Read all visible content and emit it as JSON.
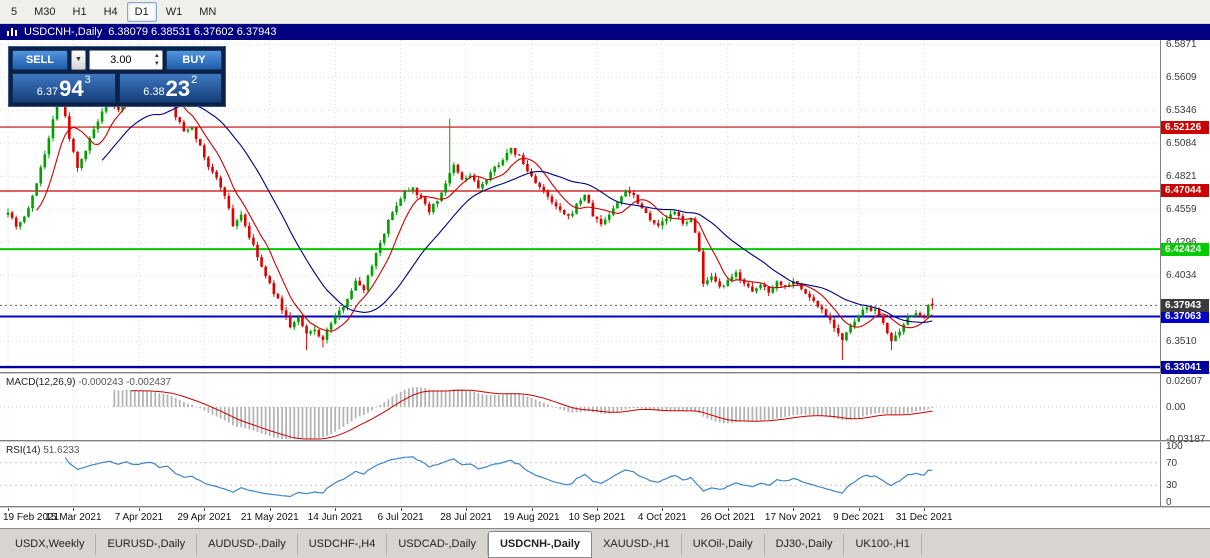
{
  "toolbar": {
    "timeframes": [
      {
        "label": "5",
        "active": false
      },
      {
        "label": "M30",
        "active": false
      },
      {
        "label": "H1",
        "active": false
      },
      {
        "label": "H4",
        "active": false
      },
      {
        "label": "D1",
        "active": true
      },
      {
        "label": "W1",
        "active": false
      },
      {
        "label": "MN",
        "active": false
      }
    ]
  },
  "chart_header": {
    "title": "USDCNH-,Daily",
    "ohlc": "6.38079 6.38531 6.37602 6.37943"
  },
  "trade_panel": {
    "sell_label": "SELL",
    "buy_label": "BUY",
    "volume": "3.00",
    "bid": {
      "prefix": "6.37",
      "big": "94",
      "sup": "3"
    },
    "ask": {
      "prefix": "6.38",
      "big": "23",
      "sup": "2"
    }
  },
  "price_axis": {
    "ticks": [
      "6.5871",
      "6.5609",
      "6.5346",
      "6.5084",
      "6.4821",
      "6.4559",
      "6.4296",
      "6.4034",
      "6.3771",
      "6.3510"
    ]
  },
  "levels": [
    {
      "value": "6.52126",
      "color": "#cc0000",
      "width": 1.2
    },
    {
      "value": "6.47044",
      "color": "#cc0000",
      "width": 1.2
    },
    {
      "value": "6.42424",
      "color": "#00cc00",
      "width": 2
    },
    {
      "value": "6.37063",
      "color": "#0000cc",
      "width": 2
    },
    {
      "value": "6.33041",
      "color": "#0000a0",
      "width": 2.4
    }
  ],
  "current_price": {
    "value": "6.37943",
    "badge_color": "#3a3a3a"
  },
  "chart_data": {
    "type": "candlestick",
    "title": "USDCNH-,Daily",
    "bars": 227,
    "ylim": [
      6.3265,
      6.5905
    ],
    "up_color": "#00a000",
    "down_color": "#e00000",
    "ma_fast": {
      "period": 8,
      "color": "#cc0000"
    },
    "ma_slow": {
      "period": 24,
      "color": "#000080"
    },
    "close_anchors": [
      [
        0,
        6.455
      ],
      [
        2,
        6.443
      ],
      [
        4,
        6.45
      ],
      [
        6,
        6.465
      ],
      [
        8,
        6.49
      ],
      [
        10,
        6.512
      ],
      [
        12,
        6.542
      ],
      [
        13,
        6.546
      ],
      [
        15,
        6.512
      ],
      [
        17,
        6.49
      ],
      [
        19,
        6.503
      ],
      [
        21,
        6.519
      ],
      [
        23,
        6.532
      ],
      [
        25,
        6.542
      ],
      [
        27,
        6.534
      ],
      [
        29,
        6.549
      ],
      [
        31,
        6.541
      ],
      [
        33,
        6.549
      ],
      [
        35,
        6.553
      ],
      [
        37,
        6.543
      ],
      [
        39,
        6.547
      ],
      [
        41,
        6.53
      ],
      [
        43,
        6.518
      ],
      [
        45,
        6.522
      ],
      [
        47,
        6.505
      ],
      [
        49,
        6.49
      ],
      [
        51,
        6.48
      ],
      [
        53,
        6.468
      ],
      [
        55,
        6.443
      ],
      [
        57,
        6.452
      ],
      [
        59,
        6.434
      ],
      [
        61,
        6.418
      ],
      [
        63,
        6.402
      ],
      [
        65,
        6.39
      ],
      [
        67,
        6.377
      ],
      [
        69,
        6.363
      ],
      [
        71,
        6.369
      ],
      [
        73,
        6.356
      ],
      [
        75,
        6.36
      ],
      [
        77,
        6.352
      ],
      [
        79,
        6.366
      ],
      [
        81,
        6.374
      ],
      [
        83,
        6.386
      ],
      [
        85,
        6.398
      ],
      [
        87,
        6.393
      ],
      [
        89,
        6.412
      ],
      [
        91,
        6.43
      ],
      [
        93,
        6.446
      ],
      [
        95,
        6.46
      ],
      [
        97,
        6.47
      ],
      [
        99,
        6.474
      ],
      [
        101,
        6.464
      ],
      [
        103,
        6.455
      ],
      [
        105,
        6.463
      ],
      [
        107,
        6.477
      ],
      [
        109,
        6.49
      ],
      [
        111,
        6.479
      ],
      [
        113,
        6.483
      ],
      [
        115,
        6.473
      ],
      [
        117,
        6.479
      ],
      [
        119,
        6.489
      ],
      [
        121,
        6.496
      ],
      [
        123,
        6.503
      ],
      [
        125,
        6.498
      ],
      [
        127,
        6.486
      ],
      [
        129,
        6.478
      ],
      [
        131,
        6.469
      ],
      [
        133,
        6.461
      ],
      [
        135,
        6.454
      ],
      [
        137,
        6.449
      ],
      [
        139,
        6.459
      ],
      [
        141,
        6.468
      ],
      [
        143,
        6.451
      ],
      [
        145,
        6.444
      ],
      [
        147,
        6.452
      ],
      [
        149,
        6.461
      ],
      [
        151,
        6.472
      ],
      [
        153,
        6.467
      ],
      [
        155,
        6.457
      ],
      [
        157,
        6.449
      ],
      [
        159,
        6.442
      ],
      [
        161,
        6.449
      ],
      [
        163,
        6.453
      ],
      [
        165,
        6.446
      ],
      [
        167,
        6.447
      ],
      [
        168,
        6.437
      ],
      [
        169,
        6.424
      ],
      [
        170,
        6.396
      ],
      [
        172,
        6.401
      ],
      [
        174,
        6.393
      ],
      [
        176,
        6.398
      ],
      [
        178,
        6.405
      ],
      [
        180,
        6.398
      ],
      [
        182,
        6.389
      ],
      [
        184,
        6.396
      ],
      [
        186,
        6.391
      ],
      [
        188,
        6.398
      ],
      [
        190,
        6.395
      ],
      [
        192,
        6.4
      ],
      [
        194,
        6.392
      ],
      [
        196,
        6.386
      ],
      [
        198,
        6.379
      ],
      [
        200,
        6.373
      ],
      [
        202,
        6.363
      ],
      [
        204,
        6.352
      ],
      [
        206,
        6.362
      ],
      [
        208,
        6.371
      ],
      [
        210,
        6.378
      ],
      [
        212,
        6.375
      ],
      [
        214,
        6.366
      ],
      [
        216,
        6.351
      ],
      [
        218,
        6.357
      ],
      [
        220,
        6.369
      ],
      [
        222,
        6.375
      ],
      [
        224,
        6.368
      ],
      [
        225,
        6.378
      ],
      [
        226,
        6.3794
      ]
    ],
    "wick_events": [
      {
        "i": 13,
        "high": 6.551
      },
      {
        "i": 34,
        "high": 6.557
      },
      {
        "i": 73,
        "low": 6.344
      },
      {
        "i": 77,
        "low": 6.346
      },
      {
        "i": 108,
        "high": 6.528
      },
      {
        "i": 204,
        "low": 6.336
      },
      {
        "i": 216,
        "low": 6.344
      }
    ],
    "last_candle": {
      "o": 6.38079,
      "h": 6.38531,
      "l": 6.37602,
      "c": 6.37943
    },
    "x_labels": [
      {
        "i": 0,
        "label": "19 Feb 2021"
      },
      {
        "i": 16,
        "label": "15 Mar 2021"
      },
      {
        "i": 32,
        "label": "7 Apr 2021"
      },
      {
        "i": 48,
        "label": "29 Apr 2021"
      },
      {
        "i": 64,
        "label": "21 May 2021"
      },
      {
        "i": 80,
        "label": "14 Jun 2021"
      },
      {
        "i": 96,
        "label": "6 Jul 2021"
      },
      {
        "i": 112,
        "label": "28 Jul 2021"
      },
      {
        "i": 128,
        "label": "19 Aug 2021"
      },
      {
        "i": 144,
        "label": "10 Sep 2021"
      },
      {
        "i": 160,
        "label": "4 Oct 2021"
      },
      {
        "i": 176,
        "label": "26 Oct 2021"
      },
      {
        "i": 192,
        "label": "17 Nov 2021"
      },
      {
        "i": 208,
        "label": "9 Dec 2021"
      },
      {
        "i": 224,
        "label": "31 Dec 2021"
      }
    ]
  },
  "macd_panel": {
    "label": "MACD(12,26,9)",
    "values": "-0.000243 -0.002437",
    "axis": [
      "0.02607",
      "0.00",
      "-0.03187"
    ],
    "hist_color": "#b4b4b4",
    "signal_color": "#cc0000"
  },
  "rsi_panel": {
    "label": "RSI(14)",
    "value": "51.6233",
    "axis": [
      "100",
      "70",
      "30",
      "0"
    ],
    "levels": [
      70,
      30
    ],
    "line_color": "#3f85c8"
  },
  "tabs": [
    {
      "label": "USDX,Weekly",
      "active": false
    },
    {
      "label": "EURUSD-,Daily",
      "active": false
    },
    {
      "label": "AUDUSD-,Daily",
      "active": false
    },
    {
      "label": "USDCHF-,H4",
      "active": false
    },
    {
      "label": "USDCAD-,Daily",
      "active": false
    },
    {
      "label": "USDCNH-,Daily",
      "active": true
    },
    {
      "label": "XAUUSD-,H1",
      "active": false
    },
    {
      "label": "UKOil-,Daily",
      "active": false
    },
    {
      "label": "DJ30-,Daily",
      "active": false
    },
    {
      "label": "UK100-,H1",
      "active": false
    }
  ]
}
